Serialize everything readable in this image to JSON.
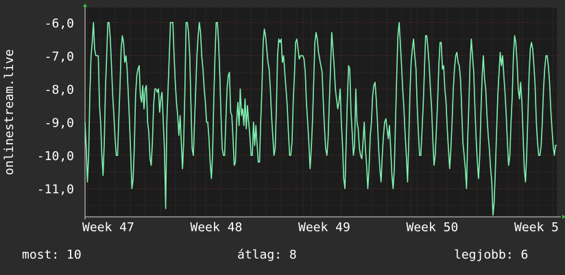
{
  "chart_data": {
    "type": "line",
    "ylabel": "onlinestream.live",
    "ylim": [
      -11.85,
      -5.55
    ],
    "y_ticks": [
      -6,
      -7,
      -8,
      -9,
      -10,
      -11
    ],
    "y_tick_labels": [
      "-6,0",
      "-7,0",
      "-8,0",
      "-9,0",
      "-10,0",
      "-11,0"
    ],
    "x_tick_labels": [
      "Week 47",
      "Week 48",
      "Week 49",
      "Week 50",
      "Week 5"
    ],
    "grid": true,
    "colors": {
      "line": "#7ff2b0",
      "background": "#2b2b2b",
      "plot_background": "#1c1c1c",
      "grid_minor": "#3a3a3a",
      "grid_major": "#6b2a2a",
      "axis_arrow": "#33cc33"
    },
    "series": [
      {
        "values": [
          -9.0,
          -9.8,
          -10.8,
          -10.0,
          -8.2,
          -7.0,
          -6.6,
          -6.0,
          -6.8,
          -7.0,
          -7.0,
          -7.0,
          -8.5,
          -9.0,
          -10.0,
          -10.6,
          -9.6,
          -8.0,
          -7.0,
          -6.0,
          -6.0,
          -6.5,
          -7.3,
          -8.2,
          -8.8,
          -9.5,
          -10.0,
          -10.0,
          -9.0,
          -8.0,
          -6.8,
          -6.4,
          -6.6,
          -7.2,
          -7.0,
          -7.4,
          -8.2,
          -9.0,
          -10.0,
          -11.0,
          -10.7,
          -9.7,
          -8.2,
          -7.6,
          -7.4,
          -7.3,
          -8.2,
          -8.4,
          -7.9,
          -8.6,
          -8.0,
          -7.9,
          -9.0,
          -9.3,
          -10.1,
          -10.3,
          -9.6,
          -8.5,
          -8.0,
          -8.0,
          -8.1,
          -8.0,
          -8.7,
          -8.3,
          -8.1,
          -9.0,
          -9.8,
          -11.6,
          -9.0,
          -8.0,
          -7.0,
          -6.0,
          -6.0,
          -6.0,
          -7.0,
          -7.8,
          -8.4,
          -8.8,
          -9.4,
          -8.8,
          -9.6,
          -10.4,
          -9.6,
          -8.0,
          -6.0,
          -6.0,
          -6.3,
          -7.0,
          -8.4,
          -9.8,
          -10.0,
          -9.0,
          -8.0,
          -7.0,
          -6.4,
          -6.0,
          -6.3,
          -7.0,
          -7.4,
          -8.0,
          -8.4,
          -9.0,
          -9.0,
          -9.5,
          -10.2,
          -10.7,
          -10.0,
          -8.3,
          -7.0,
          -6.0,
          -6.0,
          -6.6,
          -7.6,
          -8.8,
          -9.8,
          -10.0,
          -10.0,
          -9.0,
          -8.0,
          -7.6,
          -7.5,
          -8.7,
          -8.8,
          -9.5,
          -10.3,
          -10.2,
          -9.0,
          -8.4,
          -9.1,
          -8.0,
          -8.8,
          -8.6,
          -9.1,
          -8.3,
          -9.2,
          -8.5,
          -9.0,
          -9.4,
          -10.0,
          -10.0,
          -9.0,
          -9.7,
          -9.1,
          -9.7,
          -10.2,
          -10.2,
          -9.0,
          -8.0,
          -6.6,
          -6.2,
          -6.4,
          -6.8,
          -7.2,
          -7.4,
          -8.0,
          -8.8,
          -9.4,
          -10.0,
          -9.8,
          -8.6,
          -7.0,
          -6.5,
          -6.6,
          -6.5,
          -7.2,
          -7.0,
          -7.5,
          -8.0,
          -8.5,
          -9.3,
          -10.0,
          -10.0,
          -9.6,
          -8.4,
          -7.6,
          -6.6,
          -6.5,
          -6.8,
          -7.1,
          -7.0,
          -7.0,
          -7.0,
          -7.1,
          -7.5,
          -8.4,
          -9.0,
          -9.6,
          -10.4,
          -9.8,
          -9.0,
          -7.8,
          -6.6,
          -6.3,
          -6.5,
          -6.9,
          -7.1,
          -7.3,
          -7.5,
          -8.4,
          -9.2,
          -9.8,
          -10.0,
          -9.5,
          -8.4,
          -7.4,
          -6.3,
          -6.8,
          -7.3,
          -8.0,
          -8.3,
          -8.6,
          -8.4,
          -8.0,
          -9.0,
          -9.7,
          -10.7,
          -11.0,
          -9.6,
          -8.3,
          -7.3,
          -7.4,
          -8.7,
          -9.3,
          -10.0,
          -9.7,
          -8.0,
          -9.0,
          -9.2,
          -9.8,
          -10.0,
          -10.1,
          -9.6,
          -9.0,
          -9.8,
          -10.3,
          -11.0,
          -10.4,
          -9.4,
          -9.0,
          -8.2,
          -7.9,
          -7.8,
          -8.3,
          -9.0,
          -9.8,
          -10.4,
          -10.8,
          -10.0,
          -9.4,
          -9.0,
          -8.9,
          -9.2,
          -9.5,
          -9.1,
          -9.8,
          -10.6,
          -11.0,
          -10.4,
          -9.0,
          -7.6,
          -6.4,
          -6.0,
          -6.6,
          -7.3,
          -8.0,
          -8.6,
          -9.4,
          -10.0,
          -10.8,
          -9.6,
          -8.1,
          -7.2,
          -6.8,
          -6.5,
          -7.0,
          -7.4,
          -8.5,
          -9.3,
          -10.0,
          -10.0,
          -9.3,
          -8.5,
          -7.5,
          -6.4,
          -6.4,
          -6.8,
          -7.3,
          -8.0,
          -8.6,
          -9.5,
          -10.3,
          -10.0,
          -9.2,
          -8.4,
          -7.3,
          -6.6,
          -6.6,
          -7.4,
          -7.3,
          -8.0,
          -8.4,
          -9.2,
          -9.8,
          -10.4,
          -9.8,
          -9.0,
          -8.0,
          -7.4,
          -7.0,
          -6.9,
          -7.2,
          -7.3,
          -7.7,
          -8.6,
          -9.6,
          -10.0,
          -10.4,
          -11.0,
          -9.5,
          -8.4,
          -7.2,
          -6.5,
          -7.0,
          -7.5,
          -8.6,
          -9.5,
          -10.2,
          -10.7,
          -10.0,
          -8.7,
          -7.6,
          -7.0,
          -7.7,
          -8.0,
          -8.8,
          -9.4,
          -9.8,
          -10.4,
          -10.8,
          -11.8,
          -11.4,
          -10.4,
          -9.3,
          -8.2,
          -7.5,
          -6.9,
          -7.3,
          -7.0,
          -7.6,
          -8.1,
          -8.8,
          -9.6,
          -10.3,
          -10.0,
          -9.0,
          -8.2,
          -7.0,
          -6.4,
          -6.6,
          -7.2,
          -8.0,
          -8.3,
          -7.8,
          -8.4,
          -9.4,
          -10.4,
          -10.8,
          -10.0,
          -8.8,
          -7.6,
          -6.8,
          -6.6,
          -6.8,
          -7.3,
          -7.9,
          -9.0,
          -9.6,
          -10.0,
          -10.0,
          -9.7,
          -9.0,
          -8.0,
          -7.4,
          -7.0,
          -7.0,
          -7.3,
          -7.8,
          -8.6,
          -9.2,
          -9.7,
          -10.0,
          -9.7,
          -9.7
        ]
      }
    ]
  },
  "legend": {
    "now_label": "most:",
    "now_value": "10",
    "avg_label": "átlag:",
    "avg_value": "8",
    "max_label": "legjobb:",
    "max_value": "6"
  }
}
